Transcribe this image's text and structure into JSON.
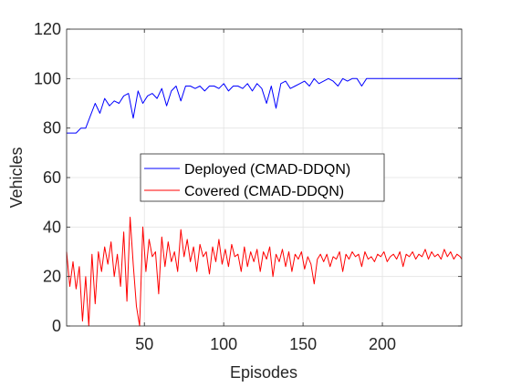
{
  "chart_data": {
    "type": "line",
    "xlabel": "Episodes",
    "ylabel": "Vehicles",
    "xlim": [
      1,
      250
    ],
    "ylim": [
      0,
      120
    ],
    "xticks": [
      50,
      100,
      150,
      200
    ],
    "yticks": [
      0,
      20,
      40,
      60,
      80,
      100,
      120
    ],
    "grid": true,
    "legend_position": "center",
    "series": [
      {
        "name": "Deployed (CMAD-DDQN)",
        "color": "#0000ff",
        "x": [
          1,
          4,
          7,
          10,
          13,
          16,
          19,
          22,
          25,
          28,
          31,
          34,
          37,
          40,
          43,
          46,
          49,
          52,
          55,
          58,
          61,
          64,
          67,
          70,
          73,
          76,
          79,
          82,
          85,
          88,
          91,
          94,
          97,
          100,
          103,
          106,
          109,
          112,
          115,
          118,
          121,
          124,
          127,
          130,
          133,
          136,
          139,
          142,
          145,
          148,
          151,
          154,
          157,
          160,
          163,
          166,
          169,
          172,
          175,
          178,
          181,
          184,
          187,
          190,
          193,
          196,
          199,
          202,
          210,
          220,
          230,
          240,
          250
        ],
        "y": [
          78,
          78,
          78,
          80,
          80,
          85,
          90,
          86,
          92,
          89,
          91,
          90,
          93,
          94,
          84,
          95,
          90,
          93,
          94,
          92,
          96,
          89,
          95,
          97,
          91,
          97,
          97,
          96,
          97,
          95,
          97,
          97,
          96,
          98,
          95,
          97,
          97,
          96,
          98,
          95,
          98,
          96,
          90,
          97,
          88,
          98,
          99,
          96,
          97,
          98,
          99,
          97,
          100,
          98,
          99,
          100,
          99,
          97,
          100,
          99,
          100,
          100,
          97,
          100,
          100,
          100,
          100,
          100,
          100,
          100,
          100,
          100,
          100
        ]
      },
      {
        "name": "Covered (CMAD-DDQN)",
        "color": "#ff0000",
        "x": [
          1,
          3,
          5,
          7,
          9,
          11,
          13,
          15,
          17,
          19,
          21,
          23,
          25,
          27,
          29,
          31,
          33,
          35,
          37,
          39,
          41,
          43,
          45,
          47,
          49,
          51,
          53,
          55,
          57,
          59,
          61,
          63,
          65,
          67,
          69,
          71,
          73,
          75,
          77,
          79,
          81,
          83,
          85,
          87,
          89,
          91,
          93,
          95,
          97,
          99,
          101,
          103,
          105,
          107,
          109,
          111,
          113,
          115,
          117,
          119,
          121,
          123,
          125,
          127,
          129,
          131,
          133,
          135,
          137,
          139,
          141,
          143,
          145,
          147,
          149,
          151,
          153,
          155,
          157,
          159,
          161,
          163,
          165,
          167,
          169,
          171,
          173,
          175,
          177,
          179,
          181,
          183,
          185,
          187,
          189,
          191,
          193,
          195,
          197,
          199,
          201,
          203,
          205,
          207,
          209,
          211,
          213,
          215,
          217,
          219,
          221,
          223,
          225,
          227,
          229,
          231,
          233,
          235,
          237,
          239,
          241,
          243,
          245,
          247,
          249,
          250
        ],
        "y": [
          30,
          16,
          26,
          15,
          24,
          2,
          20,
          0,
          29,
          9,
          30,
          22,
          32,
          25,
          34,
          20,
          29,
          16,
          38,
          10,
          44,
          25,
          8,
          0,
          40,
          22,
          35,
          28,
          30,
          13,
          36,
          24,
          34,
          26,
          30,
          22,
          39,
          28,
          35,
          26,
          32,
          22,
          33,
          28,
          30,
          21,
          32,
          26,
          35,
          25,
          31,
          24,
          33,
          28,
          29,
          22,
          32,
          24,
          30,
          26,
          31,
          22,
          30,
          27,
          32,
          20,
          29,
          26,
          31,
          24,
          30,
          22,
          29,
          27,
          30,
          23,
          28,
          25,
          17,
          27,
          29,
          26,
          29,
          24,
          28,
          27,
          30,
          22,
          29,
          27,
          30,
          28,
          29,
          24,
          30,
          27,
          28,
          26,
          29,
          28,
          30,
          26,
          28,
          29,
          27,
          30,
          24,
          29,
          28,
          30,
          27,
          29,
          28,
          31,
          27,
          30,
          28,
          29,
          27,
          31,
          28,
          30,
          27,
          29,
          28,
          27
        ]
      }
    ]
  }
}
